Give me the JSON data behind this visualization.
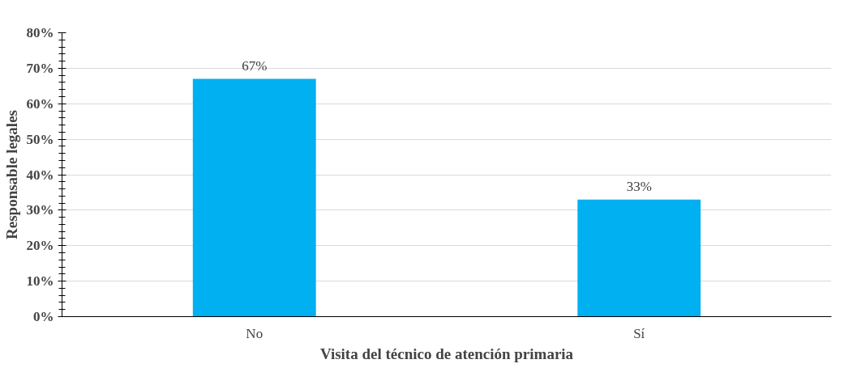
{
  "chart_data": {
    "type": "bar",
    "xlabel": "Visita del técnico de atención primaria",
    "ylabel": "Responsable legales",
    "categories": [
      "No",
      "Sí"
    ],
    "values": [
      67,
      33
    ],
    "value_labels": [
      "67%",
      "33%"
    ],
    "color": "#00b0f0",
    "ylim": [
      0,
      80
    ],
    "yticks": [
      {
        "value": 0,
        "label": "0%"
      },
      {
        "value": 10,
        "label": "10%"
      },
      {
        "value": 20,
        "label": "20%"
      },
      {
        "value": 30,
        "label": "30%"
      },
      {
        "value": 40,
        "label": "40%"
      },
      {
        "value": 50,
        "label": "50%"
      },
      {
        "value": 60,
        "label": "60%"
      },
      {
        "value": 70,
        "label": "70%"
      },
      {
        "value": 80,
        "label": "80%"
      }
    ],
    "grid": "y"
  }
}
